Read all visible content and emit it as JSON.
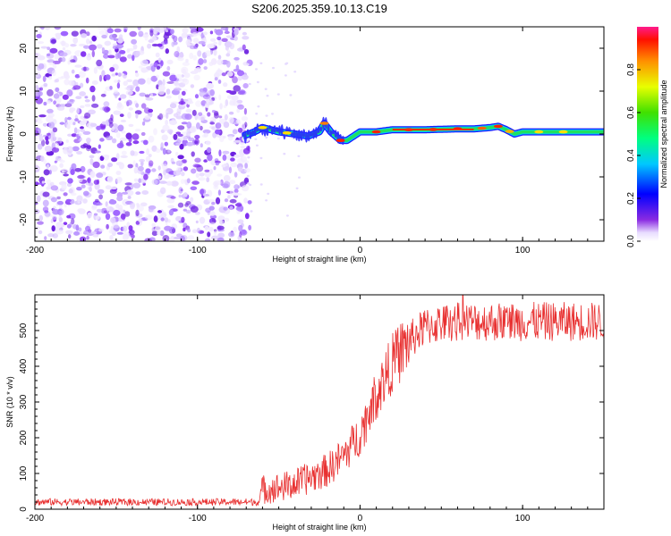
{
  "title": "S206.2025.359.10.13.C19",
  "chart_data": [
    {
      "type": "heatmap",
      "name": "spectrogram",
      "xlabel": "Height of straight line (km)",
      "ylabel": "Frequency (Hz)",
      "xlim": [
        -200,
        150
      ],
      "ylim": [
        -25,
        25
      ],
      "xticks": [
        "-200",
        "-100",
        "0",
        "100"
      ],
      "yticks": [
        "-20",
        "-10",
        "0",
        "10",
        "20"
      ],
      "noise_region_x": [
        -200,
        -70
      ],
      "signal_ridge": {
        "x": [
          -72,
          -65,
          -60,
          -50,
          -40,
          -32,
          -25,
          -22,
          -18,
          -12,
          -8,
          -4,
          0,
          10,
          20,
          40,
          60,
          70,
          80,
          85,
          90,
          95,
          100,
          120,
          150
        ],
        "freq": [
          -0.5,
          0.5,
          1.5,
          0.5,
          0.0,
          -0.5,
          0.5,
          2.5,
          0.5,
          -1.5,
          -1.5,
          -0.5,
          0.5,
          0.5,
          1.0,
          1.0,
          1.2,
          1.2,
          1.5,
          1.8,
          1.0,
          0.0,
          0.5,
          0.5,
          0.5
        ]
      }
    },
    {
      "type": "bar",
      "name": "colorbar",
      "ylabel": "Normalized spectral amplitude",
      "ylim": [
        0,
        1
      ],
      "yticks": [
        "0.0",
        "0.2",
        "0.4",
        "0.6",
        "0.8"
      ]
    },
    {
      "type": "line",
      "name": "snr",
      "xlabel": "Height of straight line (km)",
      "ylabel": "SNR (10 * v/v)",
      "xlim": [
        -200,
        150
      ],
      "ylim": [
        0,
        600
      ],
      "xticks": [
        "-200",
        "-100",
        "0",
        "100"
      ],
      "yticks": [
        "0",
        "100",
        "200",
        "300",
        "400",
        "500"
      ],
      "color": "#e83030",
      "series": [
        {
          "name": "SNR",
          "x": [
            -200,
            -150,
            -100,
            -62,
            -60,
            -50,
            -40,
            -30,
            -20,
            -10,
            0,
            10,
            20,
            30,
            40,
            50,
            60,
            80,
            100,
            120,
            150
          ],
          "y": [
            20,
            20,
            20,
            20,
            55,
            60,
            70,
            90,
            110,
            150,
            210,
            320,
            410,
            470,
            510,
            520,
            525,
            525,
            525,
            525,
            525
          ]
        }
      ]
    }
  ]
}
